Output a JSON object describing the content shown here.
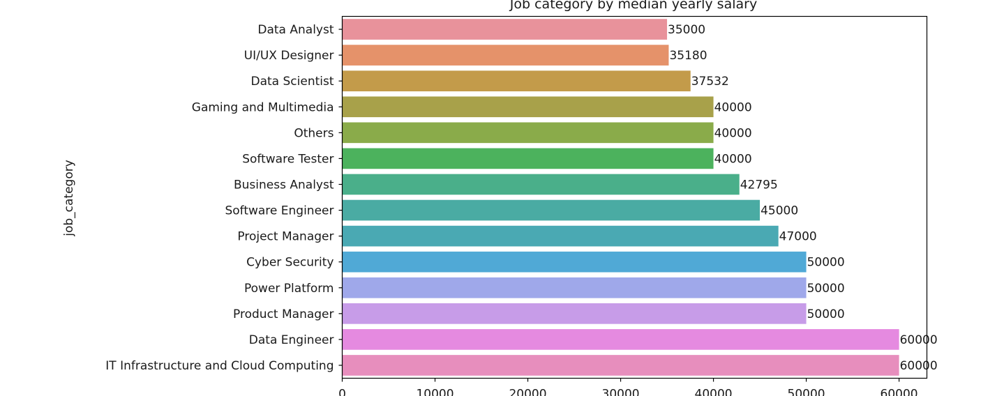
{
  "chart_data": {
    "type": "bar",
    "orientation": "horizontal",
    "title": "Job category by median yearly salary",
    "ylabel": "job_category",
    "xlabel": "",
    "xlim": [
      0,
      63000
    ],
    "x_ticks": [
      "0",
      "10000",
      "20000",
      "30000",
      "40000",
      "50000",
      "60000"
    ],
    "grid": false,
    "categories": [
      "Data Analyst",
      "UI/UX Designer",
      "Data Scientist",
      "Gaming and Multimedia",
      "Others",
      "Software Tester",
      "Business Analyst",
      "Software Engineer",
      "Project Manager",
      "Cyber Security",
      "Power Platform",
      "Product Manager",
      "Data Engineer",
      "IT Infrastructure and Cloud Computing"
    ],
    "values": [
      35000,
      35180,
      37532,
      40000,
      40000,
      40000,
      42795,
      45000,
      47000,
      50000,
      50000,
      50000,
      60000,
      60000
    ],
    "data_labels": [
      "35000",
      "35180",
      "37532",
      "40000",
      "40000",
      "40000",
      "42795",
      "45000",
      "47000",
      "50000",
      "50000",
      "50000",
      "60000",
      "60000"
    ],
    "colors": [
      "#e8929b",
      "#e5926a",
      "#c39b4a",
      "#a8a14a",
      "#8aab4a",
      "#4cb25d",
      "#4aaf8a",
      "#4aaba3",
      "#4aa9b3",
      "#50a9d6",
      "#9fa8ea",
      "#c79ce8",
      "#e58ae0",
      "#e78ebd"
    ]
  }
}
